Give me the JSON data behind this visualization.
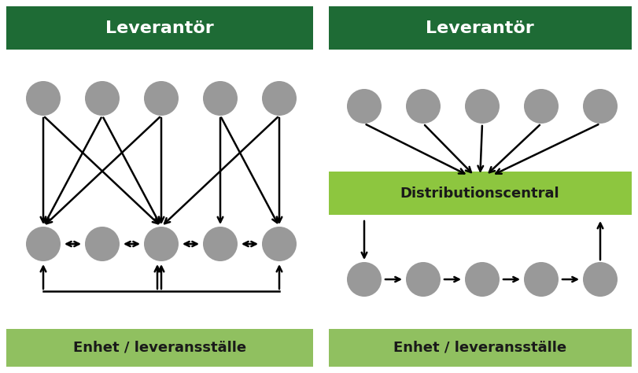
{
  "background_color": "#ffffff",
  "dark_green": "#1e6b35",
  "light_green": "#8dc63f",
  "light_green_box": "#90c060",
  "gray_circle": "#999999",
  "text_color_white": "#ffffff",
  "text_color_dark": "#1a1a1a",
  "title_left": "Leverantör",
  "title_right": "Leverantör",
  "label_left": "Enhet / leveransställe",
  "label_right": "Enhet / leveransställe",
  "label_dist": "Distributionscentral"
}
